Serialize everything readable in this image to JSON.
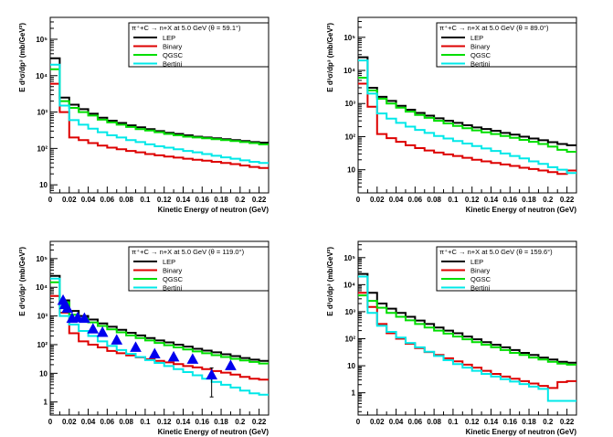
{
  "figure": {
    "colors": {
      "LEP": "#000000",
      "Binary": "#dd0000",
      "QGSC": "#00dd00",
      "Bertini": "#00e8e8",
      "data": "#0000ee"
    }
  },
  "chart_data": [
    {
      "type": "line",
      "title": "π⁺+C → n+X at 5.0 GeV (θ = 59.1°)",
      "xlabel": "Kinetic Energy of neutron (GeV)",
      "ylabel": "E d³σ/dp³ (mb/GeV²)",
      "xlim": [
        0,
        0.23
      ],
      "ylim": [
        6,
        400000
      ],
      "yscale": "log",
      "legend": [
        "LEP",
        "Binary",
        "QGSC",
        "Bertini"
      ],
      "x_edges": [
        0,
        0.01,
        0.02,
        0.03,
        0.04,
        0.05,
        0.06,
        0.07,
        0.08,
        0.09,
        0.1,
        0.11,
        0.12,
        0.13,
        0.14,
        0.15,
        0.16,
        0.17,
        0.18,
        0.19,
        0.2,
        0.21,
        0.22,
        0.23
      ],
      "xticks": [
        "0",
        "0.02",
        "0.04",
        "0.06",
        "0.08",
        "0.1",
        "0.12",
        "0.14",
        "0.16",
        "0.18",
        "0.2",
        "0.22"
      ],
      "yticks": [
        "10",
        "10²",
        "10³",
        "10⁴",
        "10⁵"
      ],
      "series": [
        {
          "name": "LEP",
          "values": [
            30000,
            2500,
            1600,
            1200,
            900,
            700,
            580,
            500,
            430,
            380,
            340,
            300,
            270,
            250,
            230,
            210,
            200,
            190,
            180,
            170,
            160,
            150,
            145
          ]
        },
        {
          "name": "Binary",
          "values": [
            6000,
            1000,
            200,
            170,
            140,
            120,
            105,
            95,
            85,
            78,
            70,
            65,
            60,
            56,
            52,
            49,
            46,
            43,
            40,
            37,
            34,
            31,
            29
          ]
        },
        {
          "name": "QGSC",
          "values": [
            15000,
            2000,
            1300,
            1000,
            800,
            620,
            520,
            450,
            390,
            340,
            310,
            280,
            250,
            230,
            210,
            200,
            190,
            180,
            170,
            160,
            150,
            140,
            130
          ]
        },
        {
          "name": "Bertini",
          "values": [
            20000,
            1500,
            600,
            450,
            350,
            280,
            230,
            200,
            170,
            150,
            130,
            115,
            105,
            95,
            85,
            78,
            70,
            63,
            57,
            52,
            47,
            43,
            40
          ]
        }
      ]
    },
    {
      "type": "line",
      "title": "π⁺+C → n+X at 5.0 GeV (θ = 89.0°)",
      "xlabel": "Kinetic Energy of neutron (GeV)",
      "ylabel": "E d³σ/dp³ (mb/GeV²)",
      "xlim": [
        0,
        0.23
      ],
      "ylim": [
        2,
        400000
      ],
      "yscale": "log",
      "legend": [
        "LEP",
        "Binary",
        "QGSC",
        "Bertini"
      ],
      "x_edges": [
        0,
        0.01,
        0.02,
        0.03,
        0.04,
        0.05,
        0.06,
        0.07,
        0.08,
        0.09,
        0.1,
        0.11,
        0.12,
        0.13,
        0.14,
        0.15,
        0.16,
        0.17,
        0.18,
        0.19,
        0.2,
        0.21,
        0.22,
        0.23
      ],
      "xticks": [
        "0",
        "0.02",
        "0.04",
        "0.06",
        "0.08",
        "0.1",
        "0.12",
        "0.14",
        "0.16",
        "0.18",
        "0.2",
        "0.22"
      ],
      "yticks": [
        "10",
        "10²",
        "10³",
        "10⁴",
        "10⁵"
      ],
      "series": [
        {
          "name": "LEP",
          "values": [
            25000,
            3000,
            1600,
            1200,
            850,
            650,
            520,
            430,
            360,
            300,
            260,
            220,
            190,
            170,
            150,
            130,
            115,
            100,
            88,
            78,
            68,
            60,
            55
          ]
        },
        {
          "name": "Binary",
          "values": [
            4000,
            800,
            120,
            90,
            70,
            55,
            45,
            38,
            33,
            29,
            26,
            23,
            20,
            18,
            16,
            14.5,
            13,
            11.5,
            10.5,
            9.5,
            8.5,
            7.5,
            9.5
          ]
        },
        {
          "name": "QGSC",
          "values": [
            6000,
            2500,
            1400,
            1000,
            750,
            570,
            450,
            370,
            300,
            250,
            210,
            180,
            155,
            135,
            120,
            105,
            92,
            80,
            70,
            60,
            50,
            40,
            35
          ]
        },
        {
          "name": "Bertini",
          "values": [
            20000,
            2000,
            500,
            350,
            260,
            200,
            160,
            130,
            105,
            88,
            74,
            62,
            52,
            44,
            37,
            31,
            26,
            22,
            18,
            15,
            12,
            10,
            8
          ]
        }
      ]
    },
    {
      "type": "line",
      "title": "π⁺+C → n+X at 5.0 GeV (θ = 119.0°)",
      "xlabel": "Kinetic Energy of neutron (GeV)",
      "ylabel": "E d³σ/dp³ (mb/GeV²)",
      "xlim": [
        0,
        0.23
      ],
      "ylim": [
        0.35,
        400000
      ],
      "yscale": "log",
      "legend": [
        "LEP",
        "Binary",
        "QGSC",
        "Bertini"
      ],
      "x_edges": [
        0,
        0.01,
        0.02,
        0.03,
        0.04,
        0.05,
        0.06,
        0.07,
        0.08,
        0.09,
        0.1,
        0.11,
        0.12,
        0.13,
        0.14,
        0.15,
        0.16,
        0.17,
        0.18,
        0.19,
        0.2,
        0.21,
        0.22,
        0.23
      ],
      "xticks": [
        "0",
        "0.02",
        "0.04",
        "0.06",
        "0.08",
        "0.1",
        "0.12",
        "0.14",
        "0.16",
        "0.18",
        "0.2",
        "0.22"
      ],
      "yticks": [
        "1",
        "10",
        "10²",
        "10³",
        "10⁴",
        "10⁵"
      ],
      "series": [
        {
          "name": "LEP",
          "values": [
            25000,
            3500,
            1500,
            1000,
            750,
            550,
            420,
            330,
            260,
            210,
            170,
            140,
            120,
            100,
            85,
            72,
            62,
            54,
            46,
            40,
            34,
            30,
            27
          ]
        },
        {
          "name": "Binary",
          "values": [
            5000,
            1300,
            250,
            130,
            100,
            80,
            60,
            50,
            42,
            36,
            31,
            27,
            24,
            21,
            18,
            16,
            14,
            12,
            10.5,
            9,
            7.5,
            6.5,
            6
          ]
        },
        {
          "name": "QGSC",
          "values": [
            15000,
            3000,
            1100,
            800,
            600,
            450,
            340,
            270,
            210,
            170,
            140,
            115,
            95,
            80,
            68,
            58,
            50,
            43,
            37,
            32,
            28,
            25,
            22
          ]
        },
        {
          "name": "Bertini",
          "values": [
            20000,
            1000,
            500,
            300,
            200,
            130,
            90,
            65,
            48,
            37,
            29,
            23,
            18,
            14,
            11,
            8.5,
            6.5,
            5,
            4,
            3.2,
            2.5,
            2,
            1.8
          ]
        }
      ],
      "data_points": {
        "name": "data",
        "x": [
          0.0135,
          0.0155,
          0.018,
          0.023,
          0.029,
          0.036,
          0.045,
          0.055,
          0.07,
          0.09,
          0.11,
          0.13,
          0.15,
          0.17,
          0.19
        ],
        "y": [
          3400,
          2400,
          1800,
          800,
          850,
          800,
          340,
          260,
          140,
          78,
          46,
          36,
          30,
          8.5,
          18
        ],
        "yerr": [
          500,
          350,
          250,
          120,
          120,
          110,
          50,
          40,
          20,
          12,
          7,
          6,
          5,
          7,
          4
        ]
      }
    },
    {
      "type": "line",
      "title": "π⁺+C → n+X at 5.0 GeV (θ = 159.6°)",
      "xlabel": "Kinetic Energy of neutron (GeV)",
      "ylabel": "E d³σ/dp³ (mb/GeV²)",
      "xlim": [
        0,
        0.23
      ],
      "ylim": [
        0.15,
        400000
      ],
      "yscale": "log",
      "legend": [
        "LEP",
        "Binary",
        "QGSC",
        "Bertini"
      ],
      "x_edges": [
        0,
        0.01,
        0.02,
        0.03,
        0.04,
        0.05,
        0.06,
        0.07,
        0.08,
        0.09,
        0.1,
        0.11,
        0.12,
        0.13,
        0.14,
        0.15,
        0.16,
        0.17,
        0.18,
        0.19,
        0.2,
        0.21,
        0.22,
        0.23
      ],
      "xticks": [
        "0",
        "0.02",
        "0.04",
        "0.06",
        "0.08",
        "0.1",
        "0.12",
        "0.14",
        "0.16",
        "0.18",
        "0.2",
        "0.22"
      ],
      "yticks": [
        "1",
        "10",
        "10²",
        "10³",
        "10⁴",
        "10⁵"
      ],
      "series": [
        {
          "name": "LEP",
          "values": [
            25000,
            5000,
            2000,
            1300,
            900,
            650,
            470,
            350,
            260,
            200,
            160,
            120,
            95,
            75,
            60,
            48,
            38,
            30,
            25,
            20,
            17,
            14,
            13
          ]
        },
        {
          "name": "Binary",
          "values": [
            5000,
            1500,
            350,
            160,
            100,
            65,
            45,
            32,
            25,
            19,
            14.5,
            11,
            8.5,
            6.5,
            5,
            4,
            3.3,
            2.7,
            2.2,
            1.8,
            1.5,
            2.5,
            2.7
          ]
        },
        {
          "name": "QGSC",
          "values": [
            4000,
            2500,
            1400,
            900,
            650,
            480,
            350,
            260,
            200,
            155,
            120,
            95,
            75,
            60,
            48,
            38,
            30,
            25,
            20,
            17,
            14,
            12,
            11
          ]
        },
        {
          "name": "Bertini",
          "values": [
            20000,
            900,
            300,
            180,
            110,
            70,
            48,
            33,
            23,
            16,
            11.5,
            8.5,
            6.5,
            5,
            4,
            3.2,
            2.6,
            2.1,
            1.7,
            1.4,
            0.5,
            0.5,
            0.5
          ]
        }
      ]
    }
  ]
}
